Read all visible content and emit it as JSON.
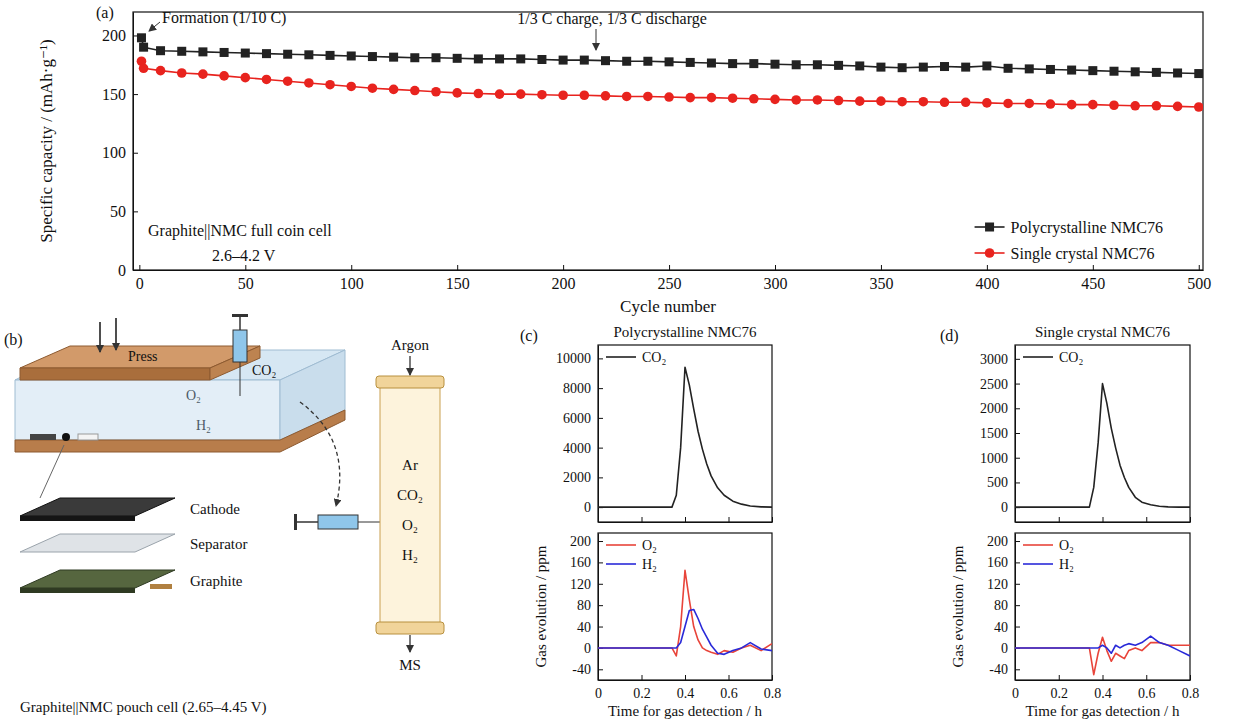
{
  "chart_data": [
    {
      "type": "line",
      "panel_label": "(a)",
      "xlabel": "Cycle number",
      "ylabel": "Specific capacity / (mAh·g⁻¹)",
      "annotations": [
        "Formation (1/10 C)",
        "1/3 C charge, 1/3 C discharge",
        "Graphite||NMC full coin cell",
        "2.6–4.2 V"
      ],
      "x": [
        1,
        2,
        10,
        20,
        30,
        40,
        50,
        60,
        70,
        80,
        90,
        100,
        110,
        120,
        130,
        140,
        150,
        160,
        170,
        180,
        190,
        200,
        210,
        220,
        230,
        240,
        250,
        260,
        270,
        280,
        290,
        300,
        310,
        320,
        330,
        340,
        350,
        360,
        370,
        380,
        390,
        400,
        410,
        420,
        430,
        440,
        450,
        460,
        470,
        480,
        490,
        500
      ],
      "series": [
        {
          "name": "Polycrystalline NMC76",
          "color": "#222222",
          "marker": "square",
          "values": [
            198,
            190,
            187,
            186.5,
            186,
            185.5,
            185,
            184.5,
            184,
            183.5,
            183,
            182.5,
            182,
            181.5,
            181,
            181,
            180.5,
            180,
            180,
            180,
            179.5,
            179,
            179,
            178.5,
            178,
            178,
            177.5,
            177,
            176.5,
            176,
            176,
            175.5,
            175,
            175,
            174.5,
            174,
            173,
            172.5,
            173,
            173.5,
            173,
            174,
            172,
            171.5,
            171,
            170.5,
            170,
            169.5,
            169,
            168.5,
            168,
            167.5
          ]
        },
        {
          "name": "Single crystal NMC76",
          "color": "#e8231e",
          "marker": "circle",
          "values": [
            178,
            172,
            170,
            168,
            167,
            165.5,
            164,
            162.5,
            161,
            159.5,
            158,
            156.5,
            155,
            154,
            153,
            152,
            151,
            150.5,
            150,
            150,
            149.5,
            149,
            149,
            148.5,
            148,
            148,
            147.5,
            147,
            147,
            146.5,
            146,
            145.5,
            145,
            145,
            144.5,
            144,
            144,
            143.5,
            143.5,
            143,
            143,
            142.5,
            142,
            142,
            141.5,
            141,
            141,
            140.5,
            140,
            140,
            139.5,
            139
          ]
        }
      ],
      "xlim": [
        -3,
        502
      ],
      "xticks": [
        0,
        50,
        100,
        150,
        200,
        250,
        300,
        350,
        400,
        450,
        500
      ],
      "ylim": [
        0,
        220
      ],
      "yticks": [
        0,
        50,
        100,
        150,
        200
      ],
      "legend": "lower right"
    },
    {
      "type": "line",
      "panel_label": "(c)",
      "title": "Polycrystalline NMC76",
      "x": [
        0,
        0.1,
        0.2,
        0.3,
        0.34,
        0.36,
        0.38,
        0.4,
        0.42,
        0.44,
        0.46,
        0.48,
        0.5,
        0.52,
        0.55,
        0.58,
        0.62,
        0.66,
        0.7,
        0.75,
        0.8
      ],
      "series": [
        {
          "name": "CO₂",
          "color": "#222222",
          "values": [
            0,
            0,
            0,
            0,
            0,
            800,
            4000,
            9400,
            8200,
            6600,
            5100,
            3900,
            2900,
            2100,
            1300,
            800,
            400,
            200,
            80,
            20,
            0
          ]
        }
      ],
      "xlim": [
        0,
        0.8
      ],
      "xticks": [
        0,
        0.2,
        0.4,
        0.6,
        0.8
      ],
      "ylim": [
        -1000,
        10900
      ],
      "yticks": [
        0,
        2000,
        4000,
        6000,
        8000,
        10000
      ],
      "tick_labels": "y",
      "legend": "upper left"
    },
    {
      "type": "line",
      "xlabel": "Time for gas detection / h",
      "ylabel": "Gas evolution / ppm",
      "x": [
        0,
        0.1,
        0.2,
        0.3,
        0.34,
        0.36,
        0.38,
        0.4,
        0.42,
        0.44,
        0.46,
        0.48,
        0.5,
        0.52,
        0.55,
        0.58,
        0.62,
        0.66,
        0.7,
        0.75,
        0.8
      ],
      "series": [
        {
          "name": "O₂",
          "color": "#e8443a",
          "values": [
            0,
            0,
            0,
            0,
            0,
            -15,
            40,
            145,
            90,
            40,
            15,
            0,
            -5,
            -8,
            -12,
            -5,
            -8,
            0,
            5,
            -5,
            8
          ]
        },
        {
          "name": "H₂",
          "color": "#2a2ad8",
          "values": [
            0,
            0,
            0,
            0,
            0,
            0,
            10,
            40,
            70,
            72,
            55,
            35,
            20,
            5,
            -10,
            -12,
            -5,
            0,
            10,
            -2,
            -5
          ]
        }
      ],
      "xlim": [
        0,
        0.8
      ],
      "xticks": [
        0,
        0.2,
        0.4,
        0.6,
        0.8
      ],
      "ylim": [
        -60,
        215
      ],
      "yticks": [
        -40,
        0,
        40,
        80,
        120,
        160,
        200
      ],
      "legend": "upper left"
    },
    {
      "type": "line",
      "panel_label": "(d)",
      "title": "Single crystal NMC76",
      "x": [
        0,
        0.1,
        0.2,
        0.3,
        0.34,
        0.36,
        0.38,
        0.4,
        0.42,
        0.44,
        0.46,
        0.48,
        0.5,
        0.52,
        0.55,
        0.58,
        0.62,
        0.66,
        0.7,
        0.75,
        0.8
      ],
      "series": [
        {
          "name": "CO₂",
          "color": "#222222",
          "values": [
            0,
            0,
            0,
            0,
            0,
            400,
            1300,
            2500,
            2100,
            1600,
            1200,
            850,
            600,
            400,
            200,
            100,
            50,
            20,
            5,
            0,
            0
          ]
        }
      ],
      "xlim": [
        0,
        0.8
      ],
      "xticks": [
        0,
        0.2,
        0.4,
        0.6,
        0.8
      ],
      "ylim": [
        -300,
        3280
      ],
      "yticks": [
        0,
        500,
        1000,
        1500,
        2000,
        2500,
        3000
      ],
      "tick_labels": "y",
      "legend": "upper left"
    },
    {
      "type": "line",
      "xlabel": "Time for gas detection / h",
      "ylabel": "Gas evolution / ppm",
      "x": [
        0,
        0.1,
        0.2,
        0.3,
        0.34,
        0.36,
        0.38,
        0.4,
        0.42,
        0.44,
        0.46,
        0.48,
        0.5,
        0.52,
        0.55,
        0.58,
        0.62,
        0.66,
        0.7,
        0.75,
        0.8
      ],
      "series": [
        {
          "name": "O₂",
          "color": "#e8443a",
          "values": [
            0,
            0,
            0,
            0,
            0,
            -50,
            -10,
            20,
            -5,
            -25,
            -10,
            -15,
            -20,
            -5,
            0,
            -5,
            10,
            10,
            5,
            5,
            5
          ]
        },
        {
          "name": "H₂",
          "color": "#2a2ad8",
          "values": [
            0,
            0,
            0,
            0,
            0,
            0,
            0,
            5,
            0,
            -10,
            5,
            0,
            5,
            8,
            5,
            10,
            22,
            10,
            5,
            -5,
            -15
          ]
        }
      ],
      "xlim": [
        0,
        0.8
      ],
      "xticks": [
        0,
        0.2,
        0.4,
        0.6,
        0.8
      ],
      "ylim": [
        -60,
        215
      ],
      "yticks": [
        -40,
        0,
        40,
        80,
        120,
        160,
        200
      ],
      "legend": "upper left"
    }
  ],
  "diagram": {
    "panel_label": "(b)",
    "caption": "Graphite||NMC pouch cell (2.65–4.45 V)",
    "press": "Press",
    "cell_gases": [
      "O₂",
      "CO₂",
      "H₂"
    ],
    "layers": [
      "Cathode",
      "Separator",
      "Graphite"
    ],
    "carrier_in": "Argon",
    "column_gases": [
      "Ar",
      "CO₂",
      "O₂",
      "H₂"
    ],
    "detector": "MS"
  }
}
